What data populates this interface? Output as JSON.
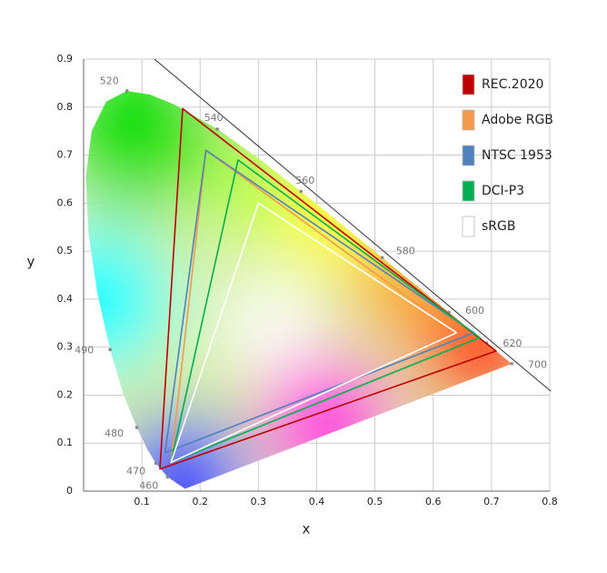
{
  "chart_data": {
    "type": "line",
    "x_label": "x",
    "y_label": "y",
    "xlim": [
      0,
      0.8
    ],
    "ylim": [
      0,
      0.9
    ],
    "xticks": [
      0.1,
      0.2,
      0.3,
      0.4,
      0.5,
      0.6,
      0.7,
      0.8
    ],
    "yticks": [
      0,
      0.1,
      0.2,
      0.3,
      0.4,
      0.5,
      0.6,
      0.7,
      0.8,
      0.9
    ],
    "grid": true,
    "legend": "right",
    "spectral_locus": {
      "x": [
        0.1741,
        0.144,
        0.1241,
        0.1096,
        0.0913,
        0.0687,
        0.0454,
        0.0235,
        0.0082,
        0.0039,
        0.0139,
        0.0389,
        0.0743,
        0.1142,
        0.1547,
        0.2296,
        0.3016,
        0.3731,
        0.4441,
        0.5125,
        0.5752,
        0.627,
        0.6915,
        0.7347
      ],
      "y": [
        0.005,
        0.0297,
        0.0578,
        0.0868,
        0.1327,
        0.2007,
        0.295,
        0.4127,
        0.5384,
        0.6548,
        0.7502,
        0.812,
        0.8338,
        0.8262,
        0.8059,
        0.7543,
        0.6923,
        0.6245,
        0.5547,
        0.4866,
        0.4242,
        0.3725,
        0.3083,
        0.2653
      ],
      "labels": [
        null,
        460,
        470,
        null,
        480,
        null,
        490,
        null,
        null,
        null,
        null,
        null,
        520,
        null,
        null,
        540,
        null,
        560,
        null,
        580,
        null,
        600,
        620,
        700
      ]
    },
    "series": [
      {
        "name": "REC.2020",
        "color": "#c00000",
        "x": [
          0.708,
          0.17,
          0.131
        ],
        "values": [
          0.292,
          0.797,
          0.046
        ]
      },
      {
        "name": "Adobe RGB",
        "color": "#f39a4c",
        "x": [
          0.64,
          0.21,
          0.15
        ],
        "values": [
          0.33,
          0.71,
          0.06
        ]
      },
      {
        "name": "NTSC 1953",
        "color": "#4f81bd",
        "x": [
          0.67,
          0.21,
          0.14
        ],
        "values": [
          0.33,
          0.71,
          0.08
        ]
      },
      {
        "name": "DCI-P3",
        "color": "#00b050",
        "x": [
          0.68,
          0.265,
          0.15
        ],
        "values": [
          0.32,
          0.69,
          0.06
        ]
      },
      {
        "name": "sRGB",
        "color": "#ffffff",
        "x": [
          0.64,
          0.3,
          0.15
        ],
        "values": [
          0.33,
          0.6,
          0.06
        ]
      }
    ]
  }
}
